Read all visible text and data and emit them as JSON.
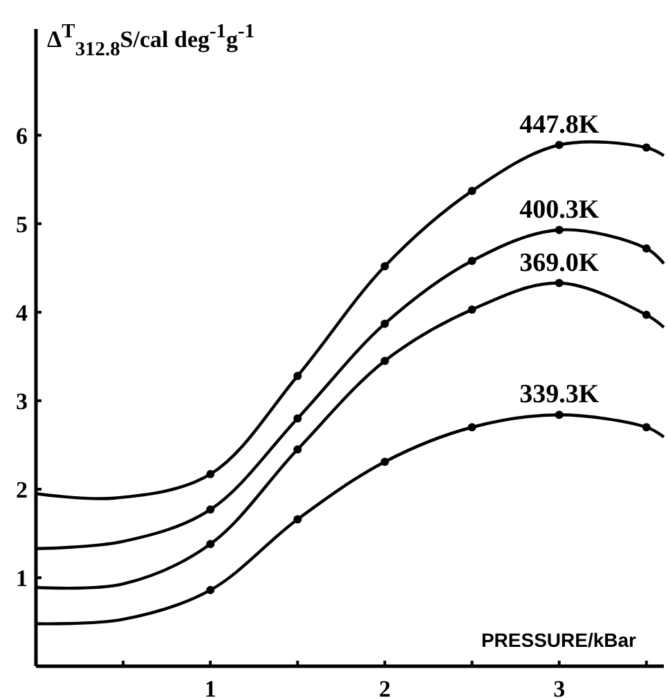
{
  "chart_data": {
    "type": "line",
    "ylabel": "Δ$^{T}$$_{312.8}$S/cal deg$^{-1}$g$^{-1}$",
    "xlabel": "PRESSURE/kBar",
    "xlim": [
      0,
      3.6
    ],
    "ylim": [
      0,
      7.2
    ],
    "xticks": [
      {
        "value": 0.5,
        "label": null
      },
      1,
      {
        "value": 1.5,
        "label": null
      },
      2,
      {
        "value": 2.5,
        "label": null
      },
      3,
      {
        "value": 3.5,
        "label": null
      }
    ],
    "yticks": [
      1,
      2,
      3,
      4,
      5,
      6
    ],
    "grid": false,
    "line_style": "solid",
    "marker": "none",
    "series": [
      {
        "name": "447.8K",
        "color": "#000000",
        "x": [
          0,
          0.45,
          1,
          1.5,
          2,
          2.5,
          3,
          3.5,
          3.6
        ],
        "values": [
          1.95,
          1.9,
          2.17,
          3.28,
          4.52,
          5.37,
          5.89,
          5.86,
          5.77
        ]
      },
      {
        "name": "400.3K",
        "color": "#000000",
        "x": [
          0,
          0.5,
          1,
          1.5,
          2,
          2.5,
          3,
          3.5,
          3.6
        ],
        "values": [
          1.33,
          1.41,
          1.77,
          2.8,
          3.87,
          4.58,
          4.93,
          4.72,
          4.55
        ]
      },
      {
        "name": "369.0K",
        "color": "#000000",
        "x": [
          0,
          0.5,
          1,
          1.5,
          2,
          2.5,
          3,
          3.5,
          3.6
        ],
        "values": [
          0.89,
          0.93,
          1.38,
          2.45,
          3.45,
          4.03,
          4.33,
          3.97,
          3.83
        ]
      },
      {
        "name": "339.3K",
        "color": "#000000",
        "x": [
          0,
          0.5,
          1,
          1.5,
          2,
          2.5,
          3,
          3.5,
          3.6
        ],
        "values": [
          0.48,
          0.53,
          0.86,
          1.66,
          2.31,
          2.7,
          2.84,
          2.7,
          2.59
        ]
      },
      {
        "type": "scatter",
        "marker": "circle",
        "color": "#000000",
        "x": [
          1,
          1.5,
          2,
          2.5,
          3,
          3.5
        ],
        "values": [
          2.17,
          3.28,
          4.52,
          5.37,
          5.89,
          5.86
        ]
      },
      {
        "type": "scatter",
        "marker": "circle",
        "color": "#000000",
        "x": [
          1,
          1.5,
          2,
          2.5,
          3,
          3.5
        ],
        "values": [
          1.77,
          2.8,
          3.87,
          4.58,
          4.93,
          4.72
        ]
      },
      {
        "type": "scatter",
        "marker": "circle",
        "color": "#000000",
        "x": [
          1,
          1.5,
          2,
          2.5,
          3,
          3.5
        ],
        "values": [
          1.38,
          2.45,
          3.45,
          4.03,
          4.33,
          3.97
        ]
      },
      {
        "type": "scatter",
        "marker": "circle",
        "color": "#000000",
        "x": [
          1,
          1.5,
          2,
          2.5,
          3,
          3.5
        ],
        "values": [
          0.86,
          1.66,
          2.31,
          2.7,
          2.84,
          2.7
        ]
      }
    ]
  }
}
